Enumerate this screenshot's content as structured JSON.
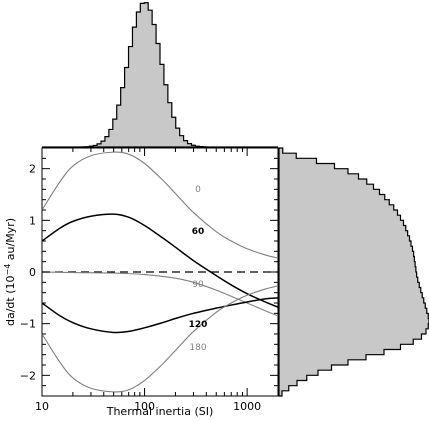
{
  "chart_data": {
    "type": "line",
    "xlabel": "Thermal inertia (SI)",
    "ylabel_parts": [
      "da/dt  (10",
      "−4",
      " au/Myr)"
    ],
    "x_scale": "log",
    "xlim": [
      10,
      2000
    ],
    "ylim": [
      -2.4,
      2.4
    ],
    "x_tick_labels": [
      {
        "value": 10,
        "label": "10"
      },
      {
        "value": 100,
        "label": "100"
      },
      {
        "value": 1000,
        "label": "1000"
      }
    ],
    "y_tick_labels": [
      {
        "value": -2,
        "label": "−2"
      },
      {
        "value": -1,
        "label": "−1"
      },
      {
        "value": 0,
        "label": "0"
      },
      {
        "value": 1,
        "label": "1"
      },
      {
        "value": 2,
        "label": "2"
      }
    ],
    "zero_line": {
      "style": "dashed",
      "color": "#000000"
    },
    "series": [
      {
        "label": "0",
        "color": "#7f7f7f",
        "points": [
          [
            10,
            1.2
          ],
          [
            15,
            1.75
          ],
          [
            20,
            2.05
          ],
          [
            30,
            2.25
          ],
          [
            50,
            2.32
          ],
          [
            70,
            2.28
          ],
          [
            100,
            2.1
          ],
          [
            150,
            1.78
          ],
          [
            200,
            1.52
          ],
          [
            300,
            1.15
          ],
          [
            500,
            0.78
          ],
          [
            700,
            0.6
          ],
          [
            1000,
            0.45
          ],
          [
            1500,
            0.33
          ],
          [
            2000,
            0.27
          ]
        ]
      },
      {
        "label": "60",
        "color": "#000000",
        "points": [
          [
            10,
            0.6
          ],
          [
            15,
            0.85
          ],
          [
            20,
            0.98
          ],
          [
            30,
            1.08
          ],
          [
            50,
            1.12
          ],
          [
            70,
            1.06
          ],
          [
            100,
            0.9
          ],
          [
            150,
            0.66
          ],
          [
            200,
            0.48
          ],
          [
            300,
            0.22
          ],
          [
            500,
            -0.07
          ],
          [
            700,
            -0.25
          ],
          [
            1000,
            -0.42
          ],
          [
            1500,
            -0.58
          ],
          [
            2000,
            -0.68
          ]
        ]
      },
      {
        "label": "90",
        "color": "#7f7f7f",
        "points": [
          [
            10,
            0.0
          ],
          [
            20,
            -0.01
          ],
          [
            50,
            -0.02
          ],
          [
            100,
            -0.05
          ],
          [
            200,
            -0.12
          ],
          [
            300,
            -0.2
          ],
          [
            500,
            -0.35
          ],
          [
            700,
            -0.47
          ],
          [
            1000,
            -0.6
          ],
          [
            1500,
            -0.75
          ],
          [
            2000,
            -0.85
          ]
        ]
      },
      {
        "label": "120",
        "color": "#000000",
        "points": [
          [
            10,
            -0.6
          ],
          [
            15,
            -0.85
          ],
          [
            20,
            -0.98
          ],
          [
            30,
            -1.1
          ],
          [
            50,
            -1.17
          ],
          [
            70,
            -1.15
          ],
          [
            100,
            -1.08
          ],
          [
            150,
            -0.98
          ],
          [
            200,
            -0.9
          ],
          [
            300,
            -0.8
          ],
          [
            500,
            -0.7
          ],
          [
            700,
            -0.64
          ],
          [
            1000,
            -0.58
          ],
          [
            1500,
            -0.52
          ],
          [
            2000,
            -0.5
          ]
        ]
      },
      {
        "label": "180",
        "color": "#7f7f7f",
        "points": [
          [
            10,
            -1.2
          ],
          [
            15,
            -1.75
          ],
          [
            20,
            -2.05
          ],
          [
            30,
            -2.25
          ],
          [
            50,
            -2.32
          ],
          [
            70,
            -2.28
          ],
          [
            100,
            -2.1
          ],
          [
            150,
            -1.78
          ],
          [
            200,
            -1.52
          ],
          [
            300,
            -1.15
          ],
          [
            500,
            -0.78
          ],
          [
            700,
            -0.6
          ],
          [
            1000,
            -0.45
          ],
          [
            1500,
            -0.33
          ],
          [
            2000,
            -0.27
          ]
        ]
      }
    ],
    "top_histogram": {
      "axis": "Thermal inertia (SI)",
      "fill": "#c8c8c8",
      "edge": "#000000",
      "center": 100,
      "log_sigma": 0.16,
      "bins": 60
    },
    "right_histogram": {
      "axis": "da/dt",
      "fill": "#c8c8c8",
      "edge": "#000000",
      "samples": [
        {
          "y": 2.4,
          "v": 0.0
        },
        {
          "y": 2.3,
          "v": 0.05
        },
        {
          "y": 2.2,
          "v": 0.18
        },
        {
          "y": 2.1,
          "v": 0.32
        },
        {
          "y": 2.0,
          "v": 0.42
        },
        {
          "y": 1.9,
          "v": 0.5
        },
        {
          "y": 1.8,
          "v": 0.56
        },
        {
          "y": 1.7,
          "v": 0.61
        },
        {
          "y": 1.6,
          "v": 0.65
        },
        {
          "y": 1.5,
          "v": 0.69
        },
        {
          "y": 1.4,
          "v": 0.72
        },
        {
          "y": 1.3,
          "v": 0.75
        },
        {
          "y": 1.2,
          "v": 0.78
        },
        {
          "y": 1.1,
          "v": 0.8
        },
        {
          "y": 1.0,
          "v": 0.82
        },
        {
          "y": 0.9,
          "v": 0.84
        },
        {
          "y": 0.8,
          "v": 0.85
        },
        {
          "y": 0.7,
          "v": 0.865
        },
        {
          "y": 0.6,
          "v": 0.875
        },
        {
          "y": 0.5,
          "v": 0.885
        },
        {
          "y": 0.4,
          "v": 0.895
        },
        {
          "y": 0.3,
          "v": 0.9
        },
        {
          "y": 0.2,
          "v": 0.905
        },
        {
          "y": 0.1,
          "v": 0.91
        },
        {
          "y": 0.0,
          "v": 0.915
        },
        {
          "y": -0.1,
          "v": 0.92
        },
        {
          "y": -0.2,
          "v": 0.93
        },
        {
          "y": -0.3,
          "v": 0.94
        },
        {
          "y": -0.4,
          "v": 0.95
        },
        {
          "y": -0.5,
          "v": 0.96
        },
        {
          "y": -0.6,
          "v": 0.97
        },
        {
          "y": -0.7,
          "v": 0.98
        },
        {
          "y": -0.8,
          "v": 0.99
        },
        {
          "y": -0.9,
          "v": 1.0
        },
        {
          "y": -1.0,
          "v": 1.0
        },
        {
          "y": -1.1,
          "v": 0.99
        },
        {
          "y": -1.2,
          "v": 0.97
        },
        {
          "y": -1.3,
          "v": 0.93
        },
        {
          "y": -1.4,
          "v": 0.86
        },
        {
          "y": -1.5,
          "v": 0.76
        },
        {
          "y": -1.6,
          "v": 0.64
        },
        {
          "y": -1.7,
          "v": 0.52
        },
        {
          "y": -1.8,
          "v": 0.4
        },
        {
          "y": -1.9,
          "v": 0.3
        },
        {
          "y": -2.0,
          "v": 0.22
        },
        {
          "y": -2.1,
          "v": 0.15
        },
        {
          "y": -2.2,
          "v": 0.09
        },
        {
          "y": -2.3,
          "v": 0.04
        },
        {
          "y": -2.4,
          "v": 0.0
        }
      ]
    }
  }
}
